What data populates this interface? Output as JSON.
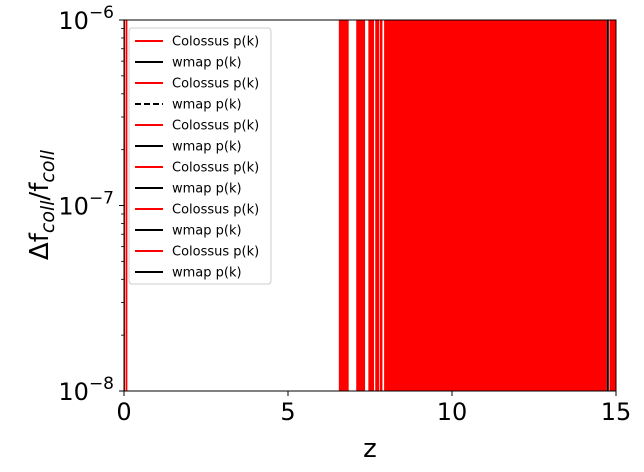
{
  "chart_data": {
    "type": "line",
    "xlabel": "z",
    "ylabel_parts": {
      "base": "Δf",
      "sub1": "coll",
      "slash": "/f",
      "sub2": "coll"
    },
    "xlim": [
      0,
      15
    ],
    "ylim": [
      1e-08,
      1e-06
    ],
    "yscale": "log",
    "grid": false,
    "legend_placement": "upper-left",
    "xticks": [
      {
        "value": 0,
        "label": "0"
      },
      {
        "value": 5,
        "label": "5"
      },
      {
        "value": 10,
        "label": "10"
      },
      {
        "value": 15,
        "label": "15"
      }
    ],
    "yticks": [
      {
        "value": 1e-08,
        "base": "10",
        "exp": "−8"
      },
      {
        "value": 1e-07,
        "base": "10",
        "exp": "−7"
      },
      {
        "value": 1e-06,
        "base": "10",
        "exp": "−6"
      }
    ],
    "series": [
      {
        "name": "Colossus p(k)",
        "color": "#ff0000",
        "style": "solid"
      },
      {
        "name": "wmap p(k)",
        "color": "#000000",
        "style": "solid"
      },
      {
        "name": "Colossus p(k)",
        "color": "#ff0000",
        "style": "solid"
      },
      {
        "name": "wmap p(k)",
        "color": "#000000",
        "style": "dashed"
      },
      {
        "name": "Colossus p(k)",
        "color": "#ff0000",
        "style": "solid"
      },
      {
        "name": "wmap p(k)",
        "color": "#000000",
        "style": "solid"
      },
      {
        "name": "Colossus p(k)",
        "color": "#ff0000",
        "style": "solid"
      },
      {
        "name": "wmap p(k)",
        "color": "#000000",
        "style": "solid"
      },
      {
        "name": "Colossus p(k)",
        "color": "#ff0000",
        "style": "solid"
      },
      {
        "name": "wmap p(k)",
        "color": "#000000",
        "style": "solid"
      },
      {
        "name": "Colossus p(k)",
        "color": "#ff0000",
        "style": "solid"
      },
      {
        "name": "wmap p(k)",
        "color": "#000000",
        "style": "solid"
      }
    ],
    "red_vertical_bands": [
      {
        "x0": -0.01,
        "x1": 0.04
      },
      {
        "x0": 6.55,
        "x1": 6.85
      },
      {
        "x0": 7.08,
        "x1": 7.35
      },
      {
        "x0": 7.45,
        "x1": 7.62
      },
      {
        "x0": 7.66,
        "x1": 7.78
      },
      {
        "x0": 7.8,
        "x1": 7.88
      },
      {
        "x0": 7.93,
        "x1": 14.72
      },
      {
        "x0": 14.8,
        "x1": 15.0
      }
    ],
    "black_vertical_lines": [
      14.75
    ],
    "thin_red_vertical_lines": [
      0.08,
      7.6,
      14.55
    ]
  }
}
